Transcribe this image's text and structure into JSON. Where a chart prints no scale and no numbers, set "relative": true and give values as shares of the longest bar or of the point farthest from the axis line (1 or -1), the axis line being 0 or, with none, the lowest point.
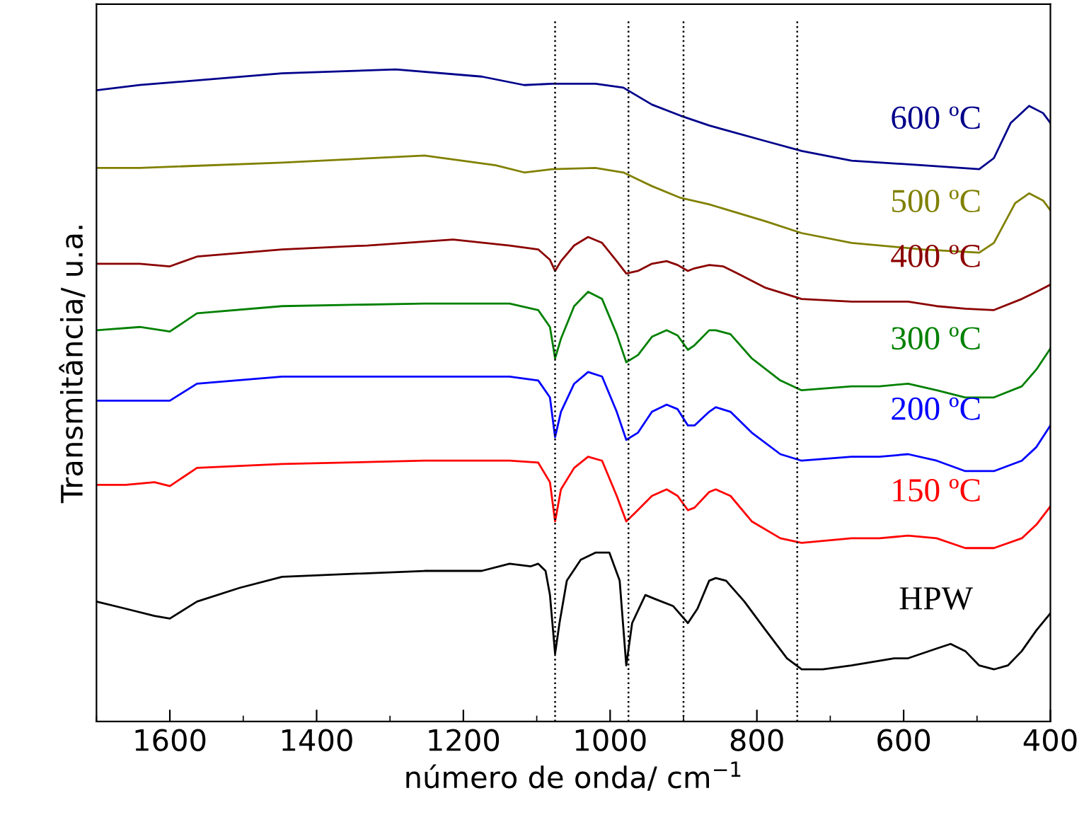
{
  "chart_data": {
    "type": "line",
    "relative": true,
    "xlabel": "número de onda/ cm$^{−1}$",
    "ylabel": "Transmitância/ u.a.",
    "xlim": [
      1700,
      400
    ],
    "xticks": [
      1600,
      1400,
      1200,
      1000,
      800,
      600,
      400
    ],
    "tick_labels": "x",
    "grid": false,
    "legend": false,
    "marker": "none",
    "line_style": "solid",
    "ref_lines": [
      {
        "axis": "x",
        "value": 1075,
        "color": "#000000",
        "line_style": "dotted"
      },
      {
        "axis": "x",
        "value": 975,
        "color": "#000000",
        "line_style": "dotted"
      },
      {
        "axis": "x",
        "value": 900,
        "color": "#000000",
        "line_style": "dotted"
      },
      {
        "axis": "x",
        "value": 745,
        "color": "#000000",
        "line_style": "dotted"
      }
    ],
    "series": [
      {
        "name": "HPW",
        "color": "#000000",
        "x": [
          1700,
          1660,
          1621,
          1600,
          1563,
          1505,
          1447,
          1253,
          1175,
          1137,
          1108,
          1098,
          1088,
          1082,
          1075,
          1069,
          1059,
          1040,
          1020,
          1001,
          987,
          978,
          970,
          952,
          939,
          914,
          894,
          881,
          865,
          856,
          842,
          817,
          788,
          759,
          739,
          710,
          671,
          613,
          594,
          555,
          536,
          516,
          497,
          477,
          458,
          439,
          419,
          400
        ],
        "values": [
          0.184,
          0.173,
          0.162,
          0.158,
          0.184,
          0.205,
          0.222,
          0.231,
          0.231,
          0.242,
          0.238,
          0.242,
          0.231,
          0.194,
          0.104,
          0.151,
          0.216,
          0.248,
          0.259,
          0.259,
          0.216,
          0.086,
          0.151,
          0.194,
          0.188,
          0.177,
          0.151,
          0.173,
          0.216,
          0.22,
          0.216,
          0.184,
          0.14,
          0.097,
          0.08,
          0.08,
          0.086,
          0.097,
          0.097,
          0.112,
          0.119,
          0.108,
          0.086,
          0.08,
          0.086,
          0.108,
          0.14,
          0.166
        ]
      },
      {
        "name": "150 ºC",
        "color": "#ff0000",
        "x": [
          1700,
          1660,
          1621,
          1600,
          1563,
          1447,
          1253,
          1137,
          1098,
          1082,
          1075,
          1067,
          1049,
          1030,
          1011,
          991,
          978,
          966,
          943,
          923,
          908,
          894,
          885,
          865,
          856,
          836,
          807,
          768,
          739,
          671,
          633,
          594,
          555,
          516,
          477,
          439,
          419,
          400
        ],
        "values": [
          0.363,
          0.363,
          0.367,
          0.361,
          0.389,
          0.395,
          0.4,
          0.4,
          0.397,
          0.367,
          0.307,
          0.356,
          0.389,
          0.406,
          0.4,
          0.346,
          0.307,
          0.32,
          0.346,
          0.356,
          0.346,
          0.324,
          0.328,
          0.352,
          0.356,
          0.346,
          0.307,
          0.281,
          0.274,
          0.281,
          0.281,
          0.285,
          0.281,
          0.266,
          0.266,
          0.281,
          0.302,
          0.33
        ]
      },
      {
        "name": "200 ºC",
        "color": "#0000ff",
        "x": [
          1700,
          1641,
          1600,
          1563,
          1447,
          1253,
          1137,
          1098,
          1082,
          1075,
          1067,
          1049,
          1030,
          1011,
          991,
          978,
          962,
          943,
          923,
          908,
          894,
          885,
          865,
          856,
          836,
          807,
          768,
          739,
          671,
          633,
          594,
          555,
          516,
          477,
          439,
          419,
          400
        ],
        "values": [
          0.492,
          0.492,
          0.492,
          0.518,
          0.529,
          0.529,
          0.529,
          0.523,
          0.497,
          0.436,
          0.475,
          0.518,
          0.536,
          0.529,
          0.475,
          0.432,
          0.443,
          0.475,
          0.486,
          0.479,
          0.454,
          0.454,
          0.475,
          0.482,
          0.475,
          0.443,
          0.41,
          0.4,
          0.406,
          0.406,
          0.41,
          0.4,
          0.384,
          0.384,
          0.4,
          0.421,
          0.454
        ]
      },
      {
        "name": "300 ºC",
        "color": "#008000",
        "x": [
          1700,
          1641,
          1600,
          1563,
          1447,
          1253,
          1137,
          1098,
          1082,
          1075,
          1067,
          1049,
          1030,
          1011,
          991,
          978,
          962,
          943,
          923,
          908,
          894,
          885,
          865,
          856,
          836,
          807,
          768,
          739,
          671,
          633,
          594,
          555,
          516,
          477,
          439,
          419,
          400
        ],
        "values": [
          0.6,
          0.605,
          0.598,
          0.626,
          0.637,
          0.641,
          0.641,
          0.631,
          0.605,
          0.557,
          0.587,
          0.637,
          0.659,
          0.648,
          0.594,
          0.551,
          0.562,
          0.59,
          0.6,
          0.592,
          0.57,
          0.577,
          0.6,
          0.6,
          0.594,
          0.557,
          0.523,
          0.508,
          0.514,
          0.514,
          0.518,
          0.508,
          0.497,
          0.497,
          0.514,
          0.54,
          0.572
        ]
      },
      {
        "name": "400 ºC",
        "color": "#8b0000",
        "x": [
          1700,
          1641,
          1600,
          1563,
          1447,
          1331,
          1214,
          1137,
          1098,
          1082,
          1075,
          1067,
          1049,
          1030,
          1011,
          991,
          978,
          962,
          943,
          923,
          908,
          894,
          885,
          865,
          846,
          826,
          788,
          739,
          671,
          594,
          555,
          516,
          477,
          439,
          419,
          400
        ],
        "values": [
          0.702,
          0.702,
          0.698,
          0.713,
          0.724,
          0.73,
          0.739,
          0.73,
          0.724,
          0.708,
          0.691,
          0.706,
          0.73,
          0.743,
          0.734,
          0.706,
          0.687,
          0.691,
          0.702,
          0.706,
          0.7,
          0.691,
          0.695,
          0.7,
          0.698,
          0.687,
          0.665,
          0.648,
          0.644,
          0.644,
          0.637,
          0.633,
          0.631,
          0.648,
          0.659,
          0.67
        ]
      },
      {
        "name": "500 ºC",
        "color": "#808000",
        "x": [
          1700,
          1641,
          1447,
          1253,
          1156,
          1117,
          1079,
          1020,
          982,
          943,
          904,
          865,
          788,
          739,
          671,
          574,
          497,
          477,
          448,
          429,
          410,
          400
        ],
        "values": [
          0.849,
          0.849,
          0.857,
          0.868,
          0.853,
          0.842,
          0.847,
          0.849,
          0.842,
          0.821,
          0.803,
          0.793,
          0.767,
          0.749,
          0.734,
          0.724,
          0.719,
          0.734,
          0.795,
          0.81,
          0.799,
          0.784
        ]
      },
      {
        "name": "600 ºC",
        "color": "#00008b",
        "x": [
          1700,
          1641,
          1447,
          1292,
          1175,
          1117,
          1079,
          1020,
          982,
          943,
          904,
          865,
          788,
          739,
          671,
          574,
          497,
          477,
          454,
          429,
          410,
          400
        ],
        "values": [
          0.968,
          0.976,
          0.994,
          1.0,
          0.989,
          0.976,
          0.978,
          0.978,
          0.972,
          0.946,
          0.929,
          0.914,
          0.89,
          0.875,
          0.86,
          0.853,
          0.847,
          0.864,
          0.918,
          0.944,
          0.933,
          0.918
        ]
      }
    ]
  }
}
